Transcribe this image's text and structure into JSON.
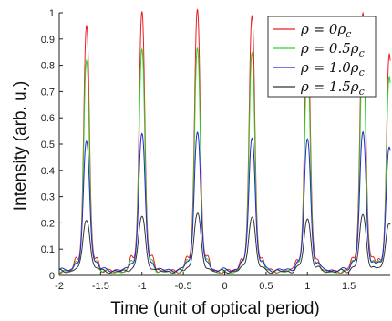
{
  "chart_data": {
    "type": "line",
    "xlabel": "Time (unit of optical period)",
    "ylabel": "Intensity (arb. u.)",
    "xlim": [
      -2,
      2
    ],
    "ylim": [
      0,
      1
    ],
    "x_ticks": [
      -2,
      -1.5,
      -1,
      -0.5,
      0,
      0.5,
      1,
      1.5
    ],
    "x_tick_labels": [
      "-2",
      "-1.5",
      "-1",
      "-0.5",
      "0",
      "0.5",
      "1",
      "1.5"
    ],
    "y_ticks": [
      0,
      0.1,
      0.2,
      0.3,
      0.4,
      0.5,
      0.6,
      0.7,
      0.8,
      0.9,
      1
    ],
    "y_tick_labels": [
      "0",
      "0.1",
      "0.2",
      "0.3",
      "0.4",
      "0.5",
      "0.6",
      "0.7",
      "0.8",
      "0.9",
      "1"
    ],
    "legend_position": "top-right",
    "grid": false,
    "peak_times": [
      -1.67,
      -1.0,
      -0.33,
      0.33,
      1.0,
      1.67
    ],
    "series": [
      {
        "name": "ρ = 0ρc",
        "legend_main": "ρ = 0ρ",
        "legend_sub": "c",
        "color": "#e8201f",
        "peak_values": [
          0.93,
          0.99,
          1.0,
          0.97,
          0.93,
          0.99,
          0.82
        ],
        "peak_width": 0.045,
        "baseline": 0.015
      },
      {
        "name": "ρ = 0.5ρc",
        "legend_main": "ρ = 0.5ρ",
        "legend_sub": "c",
        "color": "#35cc2a",
        "peak_values": [
          0.8,
          0.85,
          0.86,
          0.84,
          0.8,
          0.85,
          0.74
        ],
        "peak_width": 0.045,
        "baseline": 0.012
      },
      {
        "name": "ρ = 1.0ρc",
        "legend_main": "ρ = 1.0ρ",
        "legend_sub": "c",
        "color": "#2428d6",
        "peak_values": [
          0.49,
          0.52,
          0.53,
          0.51,
          0.5,
          0.52,
          0.47
        ],
        "peak_width": 0.05,
        "baseline": 0.02
      },
      {
        "name": "ρ = 1.5ρc",
        "legend_main": "ρ = 1.5ρ",
        "legend_sub": "c",
        "color": "#333333",
        "peak_values": [
          0.2,
          0.21,
          0.22,
          0.21,
          0.2,
          0.21,
          0.19
        ],
        "peak_width": 0.055,
        "baseline": 0.015
      }
    ],
    "peak_times_all": [
      -1.67,
      -1.0,
      -0.33,
      0.33,
      1.0,
      1.67,
      1.99
    ]
  }
}
